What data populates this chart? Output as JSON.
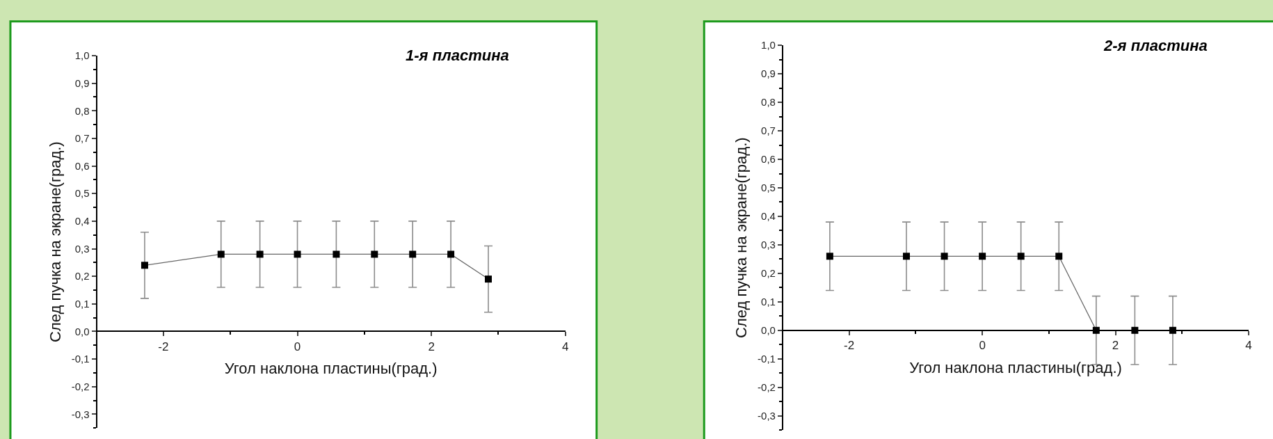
{
  "chart_data": [
    {
      "type": "line",
      "title": "1-я пластина",
      "xlabel": "Угол наклона пластины(град.)",
      "ylabel": "След пучка на экране(град.)",
      "marker": "square",
      "color": "#000000",
      "x": [
        -2.28,
        -1.14,
        -0.56,
        0,
        0.58,
        1.15,
        1.72,
        2.29,
        2.85
      ],
      "values": [
        0.24,
        0.28,
        0.28,
        0.28,
        0.28,
        0.28,
        0.28,
        0.28,
        0.19
      ],
      "errors": [
        0.12,
        0.12,
        0.12,
        0.12,
        0.12,
        0.12,
        0.12,
        0.12,
        0.12
      ],
      "xlim": [
        -3,
        4
      ],
      "ylim": [
        -0.35,
        1.0
      ],
      "xticks": [
        -2,
        0,
        2,
        4
      ],
      "yticks": [
        {
          "value": -0.3,
          "label": "-0,3"
        },
        {
          "value": -0.2,
          "label": "-0,2"
        },
        {
          "value": -0.1,
          "label": "-0,1"
        },
        {
          "value": 0,
          "label": "0,0"
        },
        {
          "value": 0.1,
          "label": "0,1"
        },
        {
          "value": 0.2,
          "label": "0,2"
        },
        {
          "value": 0.3,
          "label": "0,3"
        },
        {
          "value": 0.4,
          "label": "0,4"
        },
        {
          "value": 0.5,
          "label": "0,5"
        },
        {
          "value": 0.6,
          "label": "0,6"
        },
        {
          "value": 0.7,
          "label": "0,7"
        },
        {
          "value": 0.8,
          "label": "0,8"
        },
        {
          "value": 0.9,
          "label": "0,9"
        },
        {
          "value": 1.0,
          "label": "1,0"
        }
      ]
    },
    {
      "type": "line",
      "title": "2-я пластина",
      "xlabel": "Угол наклона пластины(град.)",
      "ylabel": "След пучка на экране(град.)",
      "marker": "square",
      "color": "#000000",
      "x": [
        -2.29,
        -1.14,
        -0.57,
        0,
        0.58,
        1.15,
        1.71,
        2.29,
        2.86
      ],
      "values": [
        0.26,
        0.26,
        0.26,
        0.26,
        0.26,
        0.26,
        0,
        0,
        0
      ],
      "errors": [
        0.12,
        0.12,
        0.12,
        0.12,
        0.12,
        0.12,
        0.12,
        0.12,
        0.12
      ],
      "xlim": [
        -3,
        4
      ],
      "ylim": [
        -0.35,
        1.0
      ],
      "xticks": [
        -2,
        0,
        2,
        4
      ],
      "yticks": [
        {
          "value": -0.3,
          "label": "-0,3"
        },
        {
          "value": -0.2,
          "label": "-0,2"
        },
        {
          "value": -0.1,
          "label": "-0,1"
        },
        {
          "value": 0,
          "label": "0,0"
        },
        {
          "value": 0.1,
          "label": "0,1"
        },
        {
          "value": 0.2,
          "label": "0,2"
        },
        {
          "value": 0.3,
          "label": "0,3"
        },
        {
          "value": 0.4,
          "label": "0,4"
        },
        {
          "value": 0.5,
          "label": "0,5"
        },
        {
          "value": 0.6,
          "label": "0,6"
        },
        {
          "value": 0.7,
          "label": "0,7"
        },
        {
          "value": 0.8,
          "label": "0,8"
        },
        {
          "value": 0.9,
          "label": "0,9"
        },
        {
          "value": 1.0,
          "label": "1,0"
        }
      ]
    }
  ]
}
